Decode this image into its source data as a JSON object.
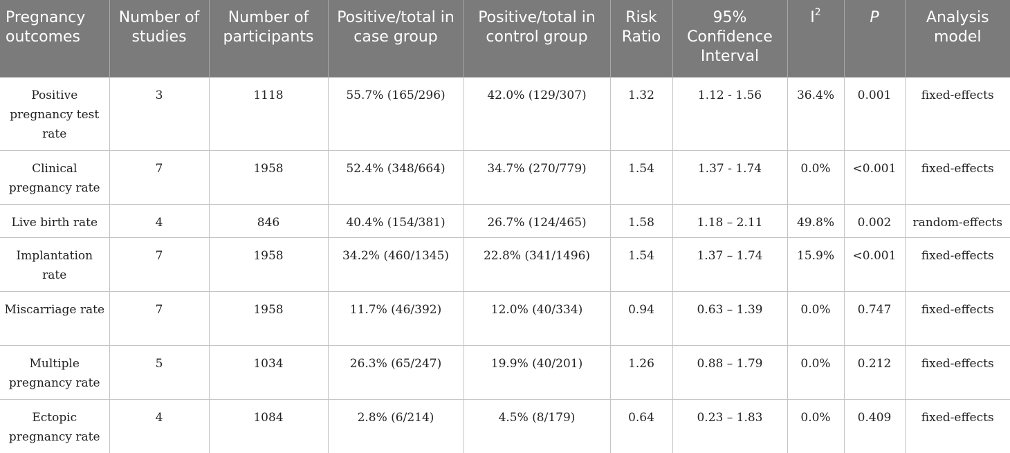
{
  "table": {
    "headers": {
      "outcomes": "Pregnancy outcomes",
      "studies": "Number of studies",
      "participants": "Number of participants",
      "case_group": "Positive/total in case group",
      "control_group": "Positive/total in control group",
      "risk_ratio": "Risk Ratio",
      "ci": "95% Confidence Interval",
      "i2_base": "I",
      "i2_sup": "2",
      "p": "P",
      "model": "Analysis model"
    },
    "rows": [
      {
        "outcome": "Positive pregnancy test rate",
        "studies": "3",
        "participants": "1118",
        "case": "55.7% (165/296)",
        "control": "42.0% (129/307)",
        "rr": "1.32",
        "ci": "1.12 - 1.56",
        "i2": "36.4%",
        "p": "0.001",
        "model": "fixed-effects"
      },
      {
        "outcome": "Clinical pregnancy rate",
        "studies": "7",
        "participants": "1958",
        "case": "52.4% (348/664)",
        "control": "34.7% (270/779)",
        "rr": "1.54",
        "ci": "1.37 - 1.74",
        "i2": "0.0%",
        "p": "<0.001",
        "model": "fixed-effects"
      },
      {
        "outcome": "Live birth rate",
        "studies": "4",
        "participants": "846",
        "case": "40.4% (154/381)",
        "control": "26.7% (124/465)",
        "rr": "1.58",
        "ci": "1.18 – 2.11",
        "i2": "49.8%",
        "p": "0.002",
        "model": "random-effects"
      },
      {
        "outcome": "Implantation rate",
        "studies": "7",
        "participants": "1958",
        "case": "34.2% (460/1345)",
        "control": "22.8% (341/1496)",
        "rr": "1.54",
        "ci": "1.37 – 1.74",
        "i2": "15.9%",
        "p": "<0.001",
        "model": "fixed-effects"
      },
      {
        "outcome": "Miscarriage rate",
        "studies": "7",
        "participants": "1958",
        "case": "11.7% (46/392)",
        "control": "12.0% (40/334)",
        "rr": "0.94",
        "ci": "0.63 – 1.39",
        "i2": "0.0%",
        "p": "0.747",
        "model": "fixed-effects"
      },
      {
        "outcome": "Multiple pregnancy rate",
        "studies": "5",
        "participants": "1034",
        "case": "26.3% (65/247)",
        "control": "19.9% (40/201)",
        "rr": "1.26",
        "ci": "0.88 – 1.79",
        "i2": "0.0%",
        "p": "0.212",
        "model": "fixed-effects"
      },
      {
        "outcome": "Ectopic pregnancy rate",
        "studies": "4",
        "participants": "1084",
        "case": "2.8% (6/214)",
        "control": "4.5% (8/179)",
        "rr": "0.64",
        "ci": "0.23 – 1.83",
        "i2": "0.0%",
        "p": "0.409",
        "model": "fixed-effects"
      }
    ]
  }
}
